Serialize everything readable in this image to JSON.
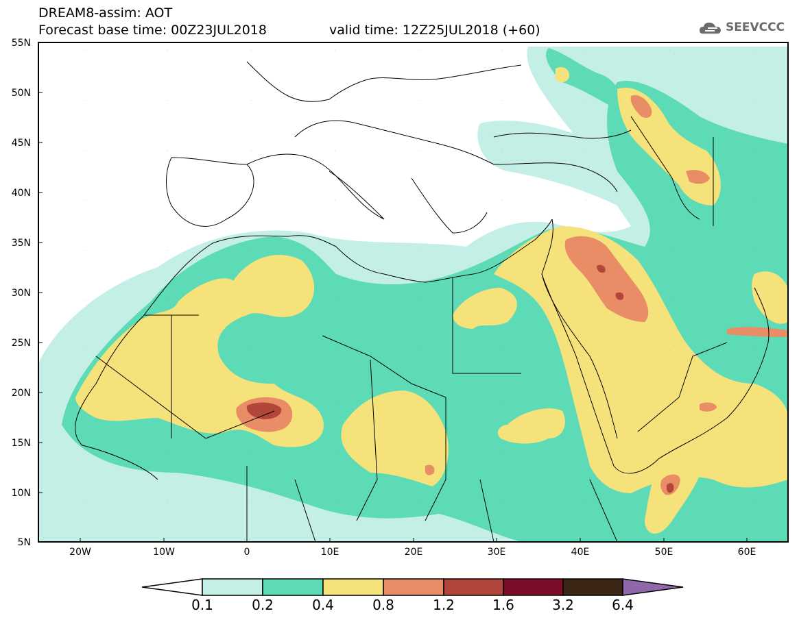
{
  "header": {
    "title_line1": "DREAM8-assim: AOT",
    "title_line2": "Forecast base time: 00Z23JUL2018",
    "valid_time": "valid time: 12Z25JUL2018 (+60)",
    "logo_text": "SEEVCCC"
  },
  "axes": {
    "lat_labels": [
      "55N",
      "50N",
      "45N",
      "40N",
      "35N",
      "30N",
      "25N",
      "20N",
      "15N",
      "10N",
      "5N"
    ],
    "lon_labels": [
      "20W",
      "10W",
      "0",
      "10E",
      "20E",
      "30E",
      "40E",
      "50E",
      "60E"
    ]
  },
  "colorbar": {
    "labels": [
      "0.1",
      "0.2",
      "0.4",
      "0.8",
      "1.2",
      "1.6",
      "3.2",
      "6.4"
    ],
    "colors": [
      "#ffffff",
      "#c4efe6",
      "#5ddbb6",
      "#f5e27a",
      "#e88d66",
      "#b2463a",
      "#7d0c29",
      "#3b2616",
      "#8e68a8"
    ]
  },
  "colors": {
    "level_0_1": "#c4efe6",
    "level_0_2": "#5ddbb6",
    "level_0_4": "#f5e27a",
    "level_0_8": "#e88d66",
    "level_1_2": "#b2463a",
    "border": "#000000"
  }
}
